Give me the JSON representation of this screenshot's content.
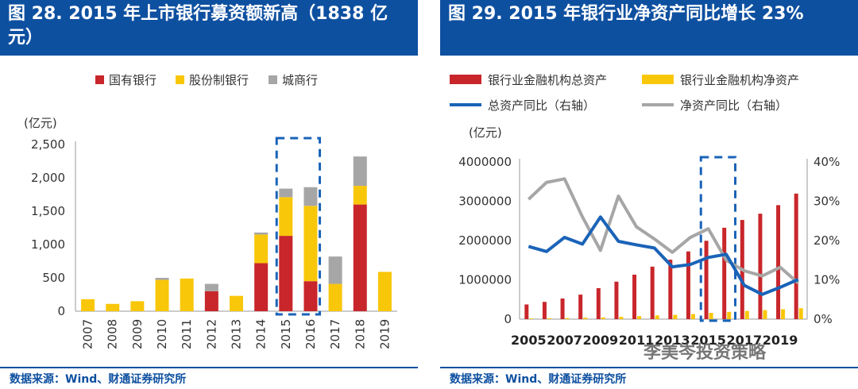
{
  "left": {
    "title": "图 28. 2015 年上市银行募资额新高（1838 亿元）",
    "source": "数据来源：Wind、财通证券研究所",
    "chart_data": {
      "type": "bar",
      "stacked": true,
      "unit_label": "(亿元)",
      "categories": [
        "2007",
        "2008",
        "2009",
        "2010",
        "2011",
        "2012",
        "2013",
        "2014",
        "2015",
        "2016",
        "2017",
        "2018",
        "2019"
      ],
      "series": [
        {
          "name": "国有银行",
          "color": "#c8262b",
          "values": [
            0,
            0,
            0,
            0,
            0,
            300,
            0,
            720,
            1130,
            450,
            0,
            1600,
            0
          ]
        },
        {
          "name": "股份制银行",
          "color": "#f9c70a",
          "values": [
            180,
            110,
            150,
            470,
            490,
            0,
            230,
            430,
            580,
            1130,
            410,
            280,
            590
          ]
        },
        {
          "name": "城商行",
          "color": "#a6a6a6",
          "values": [
            0,
            0,
            0,
            30,
            0,
            110,
            0,
            30,
            128,
            280,
            410,
            440,
            0
          ]
        }
      ],
      "ylim": [
        0,
        2500
      ],
      "yticks": [
        0,
        500,
        1000,
        1500,
        2000,
        2500
      ],
      "ytick_labels": [
        "0",
        "500",
        "1,000",
        "1,500",
        "2,000",
        "2,500"
      ],
      "highlight": [
        "2015",
        "2016"
      ],
      "legend_position": "top"
    }
  },
  "right": {
    "title": "图 29. 2015 年银行业净资产同比增长 23%",
    "source": "数据来源：Wind、财通证券研究所",
    "watermark": "李美岑投资策略",
    "chart_data": {
      "type": "bar+line",
      "unit_label": "(亿元)",
      "x": [
        "2005",
        "2006",
        "2007",
        "2008",
        "2009",
        "2010",
        "2011",
        "2012",
        "2013",
        "2014",
        "2015",
        "2016",
        "2017",
        "2018",
        "2019",
        "2020"
      ],
      "xtick_labels": [
        "2005",
        "2007",
        "2009",
        "2011",
        "2013",
        "2015",
        "2017",
        "2019"
      ],
      "series": [
        {
          "name": "银行业金融机构总资产",
          "type": "bar",
          "axis": "left",
          "color": "#c8262b",
          "values": [
            374000,
            439000,
            525000,
            624000,
            788000,
            954000,
            1132000,
            1336000,
            1513000,
            1723000,
            1994000,
            2326000,
            2524000,
            2683000,
            2901000,
            3195000
          ]
        },
        {
          "name": "银行业金融机构净资产",
          "type": "bar",
          "axis": "left",
          "color": "#f9c70a",
          "values": [
            17000,
            23000,
            29000,
            38000,
            45000,
            58000,
            76000,
            95000,
            109000,
            130000,
            160000,
            185000,
            208000,
            230000,
            253000,
            278000
          ]
        },
        {
          "name": "总资产同比（右轴）",
          "type": "line",
          "axis": "right",
          "color": "#1a63b8",
          "values": [
            18.5,
            17.2,
            20.8,
            19.1,
            26.0,
            19.8,
            18.9,
            18.1,
            13.3,
            13.9,
            15.7,
            16.5,
            8.6,
            6.3,
            8.1,
            10.1
          ]
        },
        {
          "name": "净资产同比（右轴）",
          "type": "line",
          "axis": "right",
          "color": "#a6a6a6",
          "values": [
            30.5,
            34.8,
            35.7,
            26.0,
            17.5,
            31.3,
            23.5,
            20.4,
            17.0,
            20.8,
            23.0,
            15.0,
            12.3,
            11.0,
            13.2,
            9.2
          ]
        }
      ],
      "ylim_left": [
        0,
        4000000
      ],
      "yticks_left": [
        0,
        1000000,
        2000000,
        3000000,
        4000000
      ],
      "ylim_right": [
        0,
        40
      ],
      "ytick_labels_right": [
        "0%",
        "10%",
        "20%",
        "30%",
        "40%"
      ],
      "highlight": [
        "2015",
        "2016"
      ],
      "legend_position": "top"
    }
  }
}
